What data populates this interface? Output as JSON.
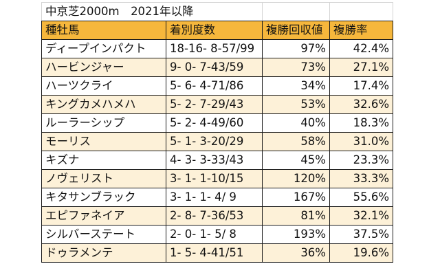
{
  "sheet": {
    "title": "中京芝2000m　2021年以降",
    "headers": {
      "sire": "種牡馬",
      "record": "着別度数",
      "place_return": "複勝回収値",
      "place_rate": "複勝率"
    },
    "rows": [
      {
        "sire": "ディープインパクト",
        "record": "18-16- 8-57/99",
        "place_return": "97%",
        "place_rate": "42.4%"
      },
      {
        "sire": "ハービンジャー",
        "record": "9- 0- 7-43/59",
        "place_return": "73%",
        "place_rate": "27.1%"
      },
      {
        "sire": "ハーツクライ",
        "record": "5- 6- 4-71/86",
        "place_return": "34%",
        "place_rate": "17.4%"
      },
      {
        "sire": "キングカメハメハ",
        "record": "5- 2- 7-29/43",
        "place_return": "53%",
        "place_rate": "32.6%"
      },
      {
        "sire": "ルーラーシップ",
        "record": "5- 2- 4-49/60",
        "place_return": "40%",
        "place_rate": "18.3%"
      },
      {
        "sire": "モーリス",
        "record": "5- 1- 3-20/29",
        "place_return": "58%",
        "place_rate": "31.0%"
      },
      {
        "sire": "キズナ",
        "record": "4- 3- 3-33/43",
        "place_return": "45%",
        "place_rate": "23.3%"
      },
      {
        "sire": "ノヴェリスト",
        "record": "3- 1- 1-10/15",
        "place_return": "120%",
        "place_rate": "33.3%"
      },
      {
        "sire": "キタサンブラック",
        "record": "3- 1- 1- 4/ 9",
        "place_return": "167%",
        "place_rate": "55.6%"
      },
      {
        "sire": "エピファネイア",
        "record": "2- 8- 7-36/53",
        "place_return": "81%",
        "place_rate": "32.1%"
      },
      {
        "sire": "シルバーステート",
        "record": "2- 0- 1- 5/ 8",
        "place_return": "193%",
        "place_rate": "37.5%"
      },
      {
        "sire": "ドゥラメンテ",
        "record": "1- 5- 4-41/51",
        "place_return": "36%",
        "place_rate": "19.6%"
      }
    ]
  }
}
